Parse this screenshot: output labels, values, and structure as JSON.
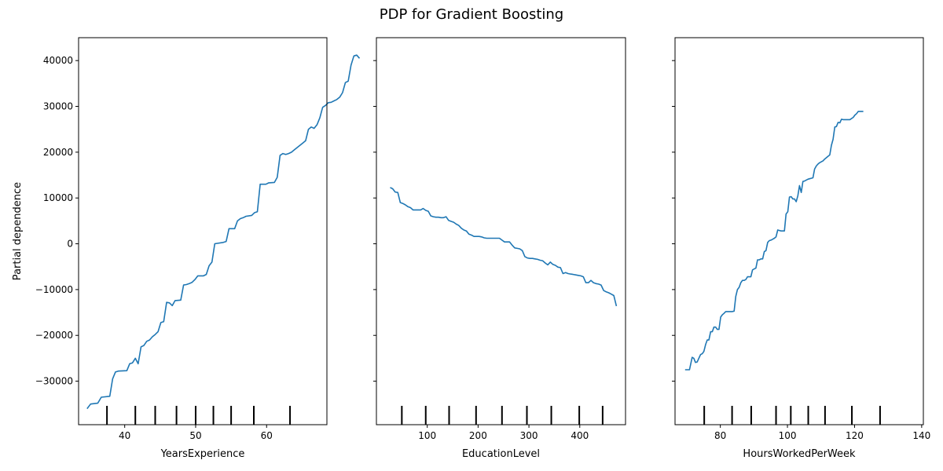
{
  "figure": {
    "title": "PDP for Gradient Boosting"
  },
  "colors": {
    "line": "#1f77b4",
    "axis": "#000000",
    "background": "#ffffff"
  },
  "chart_data": [
    {
      "type": "line",
      "xlabel": "YearsExperience",
      "ylabel": "Partial dependence",
      "xlim": [
        33.5,
        68.5
      ],
      "ylim": [
        -39500,
        45000
      ],
      "xticks": [
        40,
        50,
        60
      ],
      "yticks": [
        -30000,
        -20000,
        -10000,
        0,
        10000,
        20000,
        30000,
        40000
      ],
      "show_ytick_labels": true,
      "deciles": [
        37.5,
        41.5,
        44.3,
        47.3,
        50.0,
        52.5,
        55.0,
        58.2,
        63.3
      ],
      "points": [
        [
          34.7,
          -36000
        ],
        [
          35.2,
          -35000
        ],
        [
          36.2,
          -34800
        ],
        [
          36.7,
          -33500
        ],
        [
          37.9,
          -33300
        ],
        [
          38.3,
          -29500
        ],
        [
          38.7,
          -28000
        ],
        [
          39.1,
          -27800
        ],
        [
          40.3,
          -27700
        ],
        [
          40.7,
          -26200
        ],
        [
          41.1,
          -26000
        ],
        [
          41.5,
          -25000
        ],
        [
          41.9,
          -26200
        ],
        [
          42.3,
          -22500
        ],
        [
          42.7,
          -22200
        ],
        [
          43.1,
          -21300
        ],
        [
          43.5,
          -21000
        ],
        [
          43.9,
          -20300
        ],
        [
          44.3,
          -19800
        ],
        [
          44.7,
          -19200
        ],
        [
          45.1,
          -17200
        ],
        [
          45.5,
          -17000
        ],
        [
          45.9,
          -12800
        ],
        [
          46.3,
          -12900
        ],
        [
          46.7,
          -13500
        ],
        [
          47.1,
          -12400
        ],
        [
          47.9,
          -12300
        ],
        [
          48.3,
          -9000
        ],
        [
          48.7,
          -8900
        ],
        [
          49.1,
          -8700
        ],
        [
          49.5,
          -8400
        ],
        [
          49.9,
          -7800
        ],
        [
          50.3,
          -7000
        ],
        [
          51.1,
          -7000
        ],
        [
          51.5,
          -6700
        ],
        [
          51.9,
          -4800
        ],
        [
          52.3,
          -4000
        ],
        [
          52.7,
          0
        ],
        [
          53.9,
          300
        ],
        [
          54.3,
          500
        ],
        [
          54.7,
          3300
        ],
        [
          55.5,
          3300
        ],
        [
          55.9,
          5000
        ],
        [
          56.3,
          5500
        ],
        [
          56.7,
          5700
        ],
        [
          57.1,
          6000
        ],
        [
          57.9,
          6200
        ],
        [
          58.3,
          6800
        ],
        [
          58.7,
          7000
        ],
        [
          59.1,
          13000
        ],
        [
          59.9,
          13000
        ],
        [
          60.3,
          13300
        ],
        [
          61.1,
          13400
        ],
        [
          61.5,
          14500
        ],
        [
          61.9,
          19300
        ],
        [
          62.3,
          19700
        ],
        [
          62.7,
          19500
        ],
        [
          63.1,
          19700
        ],
        [
          63.5,
          20000
        ],
        [
          63.9,
          20500
        ],
        [
          64.3,
          21000
        ],
        [
          64.7,
          21500
        ],
        [
          65.1,
          22000
        ],
        [
          65.5,
          22500
        ],
        [
          65.9,
          25000
        ],
        [
          66.3,
          25500
        ],
        [
          66.7,
          25200
        ],
        [
          67.1,
          26000
        ],
        [
          67.5,
          27500
        ],
        [
          67.9,
          29800
        ],
        [
          68.3,
          30200
        ],
        [
          68.7,
          30800
        ],
        [
          69.1,
          30900
        ],
        [
          69.5,
          31200
        ],
        [
          69.9,
          31500
        ],
        [
          70.3,
          32000
        ],
        [
          70.7,
          33000
        ],
        [
          71.1,
          35200
        ],
        [
          71.5,
          35500
        ],
        [
          71.9,
          39000
        ],
        [
          72.3,
          41000
        ],
        [
          72.7,
          41200
        ],
        [
          73.1,
          40500
        ]
      ]
    },
    {
      "type": "line",
      "xlabel": "EducationLevel",
      "ylabel": "",
      "xlim": [
        0,
        490
      ],
      "ylim": [
        -39500,
        45000
      ],
      "xticks": [
        100,
        200,
        300,
        400
      ],
      "yticks": [
        -30000,
        -20000,
        -10000,
        0,
        10000,
        20000,
        30000,
        40000
      ],
      "show_ytick_labels": false,
      "deciles": [
        50,
        97,
        143,
        196,
        247,
        296,
        344,
        399,
        445
      ],
      "points": [
        [
          27,
          12300
        ],
        [
          32,
          12000
        ],
        [
          37,
          11300
        ],
        [
          42,
          11200
        ],
        [
          47,
          9000
        ],
        [
          52,
          8800
        ],
        [
          57,
          8500
        ],
        [
          62,
          8100
        ],
        [
          67,
          7900
        ],
        [
          72,
          7400
        ],
        [
          77,
          7400
        ],
        [
          82,
          7400
        ],
        [
          87,
          7400
        ],
        [
          92,
          7700
        ],
        [
          97,
          7300
        ],
        [
          102,
          7100
        ],
        [
          107,
          6100
        ],
        [
          112,
          5900
        ],
        [
          117,
          5800
        ],
        [
          122,
          5800
        ],
        [
          127,
          5700
        ],
        [
          132,
          5700
        ],
        [
          137,
          5900
        ],
        [
          142,
          5100
        ],
        [
          147,
          4900
        ],
        [
          152,
          4700
        ],
        [
          157,
          4300
        ],
        [
          162,
          4000
        ],
        [
          167,
          3400
        ],
        [
          172,
          3000
        ],
        [
          177,
          2800
        ],
        [
          182,
          2100
        ],
        [
          187,
          1900
        ],
        [
          192,
          1600
        ],
        [
          197,
          1600
        ],
        [
          202,
          1600
        ],
        [
          207,
          1500
        ],
        [
          212,
          1300
        ],
        [
          217,
          1200
        ],
        [
          222,
          1200
        ],
        [
          227,
          1200
        ],
        [
          232,
          1200
        ],
        [
          237,
          1200
        ],
        [
          242,
          1200
        ],
        [
          247,
          800
        ],
        [
          252,
          400
        ],
        [
          257,
          400
        ],
        [
          262,
          400
        ],
        [
          267,
          -300
        ],
        [
          272,
          -900
        ],
        [
          277,
          -1000
        ],
        [
          282,
          -1100
        ],
        [
          287,
          -1500
        ],
        [
          292,
          -2800
        ],
        [
          297,
          -3100
        ],
        [
          302,
          -3200
        ],
        [
          307,
          -3200
        ],
        [
          312,
          -3300
        ],
        [
          317,
          -3400
        ],
        [
          322,
          -3600
        ],
        [
          327,
          -3700
        ],
        [
          332,
          -4200
        ],
        [
          337,
          -4600
        ],
        [
          342,
          -4000
        ],
        [
          347,
          -4500
        ],
        [
          352,
          -4700
        ],
        [
          357,
          -5100
        ],
        [
          362,
          -5200
        ],
        [
          367,
          -6500
        ],
        [
          372,
          -6300
        ],
        [
          377,
          -6500
        ],
        [
          382,
          -6600
        ],
        [
          387,
          -6700
        ],
        [
          392,
          -6800
        ],
        [
          397,
          -6900
        ],
        [
          402,
          -7000
        ],
        [
          407,
          -7200
        ],
        [
          412,
          -8500
        ],
        [
          417,
          -8500
        ],
        [
          422,
          -8000
        ],
        [
          427,
          -8500
        ],
        [
          432,
          -8700
        ],
        [
          437,
          -8800
        ],
        [
          442,
          -9000
        ],
        [
          447,
          -10200
        ],
        [
          452,
          -10500
        ],
        [
          457,
          -10700
        ],
        [
          462,
          -11000
        ],
        [
          467,
          -11300
        ],
        [
          472,
          -13600
        ]
      ]
    },
    {
      "type": "line",
      "xlabel": "HoursWorkedPerWeek",
      "ylabel": "",
      "xlim": [
        66.5,
        140.5
      ],
      "ylim": [
        -39500,
        45000
      ],
      "xticks": [
        80,
        100,
        120,
        140
      ],
      "yticks": [
        -30000,
        -20000,
        -10000,
        0,
        10000,
        20000,
        30000,
        40000
      ],
      "show_ytick_labels": false,
      "deciles": [
        75.2,
        83.5,
        89.2,
        96.6,
        101.0,
        106.2,
        111.2,
        119.2,
        127.6
      ],
      "points": [
        [
          69.5,
          -27500
        ],
        [
          70.8,
          -27500
        ],
        [
          71.6,
          -24800
        ],
        [
          72.1,
          -25000
        ],
        [
          72.6,
          -25900
        ],
        [
          73.1,
          -25800
        ],
        [
          73.6,
          -25000
        ],
        [
          74.1,
          -24200
        ],
        [
          74.6,
          -24000
        ],
        [
          75.1,
          -23500
        ],
        [
          75.6,
          -22000
        ],
        [
          76.1,
          -21000
        ],
        [
          76.6,
          -21000
        ],
        [
          77.1,
          -19200
        ],
        [
          77.6,
          -19200
        ],
        [
          78.1,
          -18200
        ],
        [
          78.6,
          -18200
        ],
        [
          79.1,
          -18700
        ],
        [
          79.6,
          -18700
        ],
        [
          80.1,
          -16000
        ],
        [
          80.6,
          -15500
        ],
        [
          81.1,
          -15200
        ],
        [
          81.6,
          -14800
        ],
        [
          82.1,
          -14800
        ],
        [
          82.6,
          -14800
        ],
        [
          83.1,
          -14800
        ],
        [
          83.6,
          -14800
        ],
        [
          84.1,
          -14700
        ],
        [
          84.6,
          -11500
        ],
        [
          85.1,
          -10000
        ],
        [
          85.6,
          -9500
        ],
        [
          86.1,
          -8500
        ],
        [
          86.6,
          -8000
        ],
        [
          87.1,
          -8000
        ],
        [
          87.6,
          -7800
        ],
        [
          88.1,
          -7200
        ],
        [
          88.6,
          -7200
        ],
        [
          89.1,
          -7200
        ],
        [
          89.6,
          -5700
        ],
        [
          90.1,
          -5500
        ],
        [
          90.6,
          -5300
        ],
        [
          91.1,
          -3500
        ],
        [
          91.6,
          -3500
        ],
        [
          92.1,
          -3300
        ],
        [
          92.6,
          -3300
        ],
        [
          93.1,
          -1700
        ],
        [
          93.6,
          -1500
        ],
        [
          94.1,
          300
        ],
        [
          94.6,
          700
        ],
        [
          95.1,
          800
        ],
        [
          95.6,
          1000
        ],
        [
          96.1,
          1200
        ],
        [
          96.6,
          1500
        ],
        [
          97.1,
          3000
        ],
        [
          97.6,
          2900
        ],
        [
          98.1,
          2800
        ],
        [
          98.6,
          2800
        ],
        [
          99.1,
          2800
        ],
        [
          99.6,
          6500
        ],
        [
          100.1,
          7000
        ],
        [
          100.6,
          10200
        ],
        [
          101.1,
          10300
        ],
        [
          101.6,
          9800
        ],
        [
          102.1,
          9800
        ],
        [
          102.6,
          9200
        ],
        [
          103.1,
          10500
        ],
        [
          103.6,
          12700
        ],
        [
          104.1,
          11200
        ],
        [
          104.6,
          13600
        ],
        [
          105.1,
          13700
        ],
        [
          105.6,
          13900
        ],
        [
          106.1,
          14100
        ],
        [
          106.6,
          14200
        ],
        [
          107.1,
          14300
        ],
        [
          107.6,
          14400
        ],
        [
          108.1,
          16300
        ],
        [
          108.6,
          17000
        ],
        [
          109.1,
          17400
        ],
        [
          109.6,
          17700
        ],
        [
          110.1,
          17900
        ],
        [
          110.6,
          18100
        ],
        [
          111.1,
          18500
        ],
        [
          111.6,
          18800
        ],
        [
          112.1,
          19100
        ],
        [
          112.6,
          19400
        ],
        [
          113.1,
          21500
        ],
        [
          113.6,
          22800
        ],
        [
          114.1,
          25500
        ],
        [
          114.6,
          25600
        ],
        [
          115.1,
          26500
        ],
        [
          115.6,
          26400
        ],
        [
          116.1,
          27200
        ],
        [
          116.6,
          27100
        ],
        [
          117.1,
          27100
        ],
        [
          118.6,
          27100
        ],
        [
          119.6,
          27600
        ],
        [
          120.1,
          28100
        ],
        [
          120.6,
          28400
        ],
        [
          121.1,
          28900
        ],
        [
          122.6,
          28900
        ]
      ]
    }
  ]
}
